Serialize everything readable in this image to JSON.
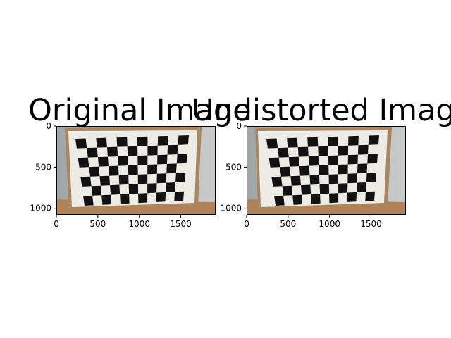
{
  "panels": [
    {
      "title": "Original Image",
      "image": "checkerboard-calibration-photo",
      "xticks": [
        0,
        500,
        1000,
        1500
      ],
      "yticks": [
        0,
        500,
        1000
      ],
      "xlim": [
        0,
        1920
      ],
      "ylim": [
        1080,
        0
      ]
    },
    {
      "title": "Undistorted Image",
      "image": "checkerboard-calibration-photo-undistorted",
      "xticks": [
        0,
        500,
        1000,
        1500
      ],
      "yticks": [
        0,
        500,
        1000
      ],
      "xlim": [
        0,
        1920
      ],
      "ylim": [
        1080,
        0
      ]
    }
  ],
  "colors": {
    "background": "#ffffff",
    "axis": "#000000",
    "photo_wall": "#b7bcbc",
    "paper": "#ecebe6",
    "board_frame": "#a98560",
    "square": "#121212",
    "table": "#b0825a"
  }
}
